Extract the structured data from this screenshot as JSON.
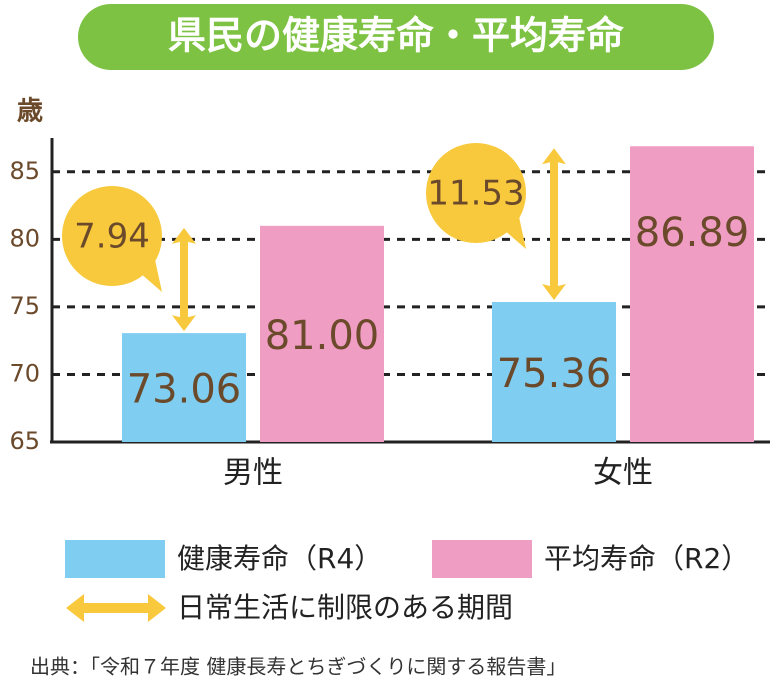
{
  "chart_data": {
    "type": "bar",
    "title": "県民の健康寿命・平均寿命",
    "y_label": "歳",
    "categories": [
      "男性",
      "女性"
    ],
    "series": [
      {
        "name": "健康寿命（R4）",
        "color": "#7fcdf0",
        "values": [
          73.06,
          75.36
        ],
        "value_labels": [
          "73.06",
          "75.36"
        ]
      },
      {
        "name": "平均寿命（R2）",
        "color": "#f09dc4",
        "values": [
          81.0,
          86.89
        ],
        "value_labels": [
          "81.00",
          "86.89"
        ]
      }
    ],
    "differences": [
      7.94,
      11.53
    ],
    "difference_name": "日常生活に制限のある期間",
    "difference_color": "#f8c93c",
    "ylim": [
      65,
      87.5
    ],
    "yticks": [
      65,
      70,
      75,
      80,
      85
    ],
    "grid": true,
    "source": "出典：「令和７年度 健康長寿とちぎづくりに関する報告書」"
  }
}
